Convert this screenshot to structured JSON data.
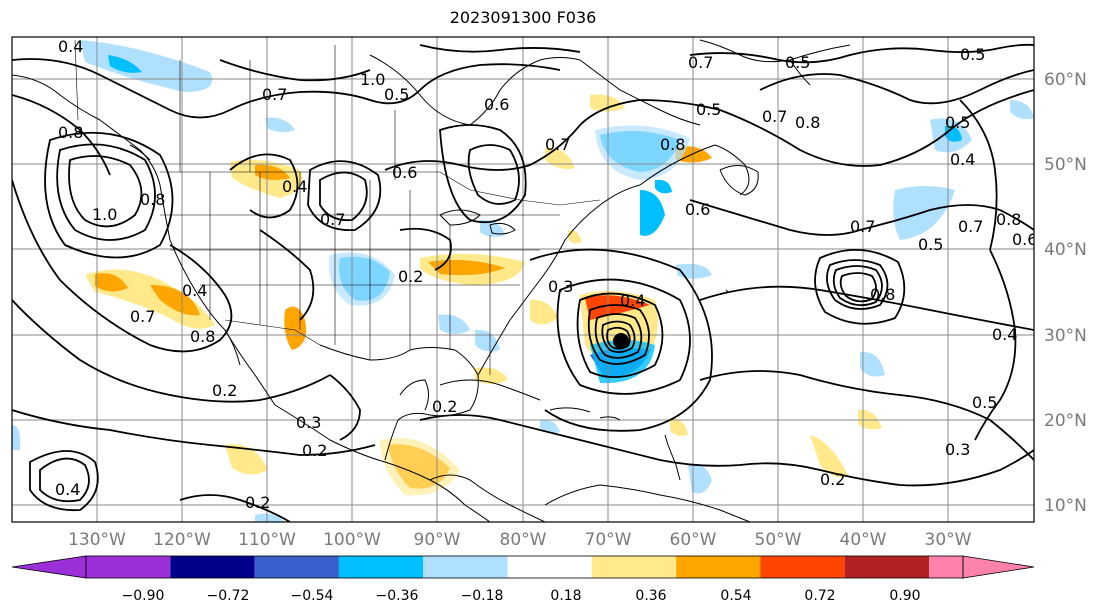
{
  "title": "2023091300 F036",
  "colors": {
    "neg_090": "#9b30d9",
    "neg_072": "#00008b",
    "neg_054": "#3a5fcd",
    "neg_036": "#00bfff",
    "neg_018": "#b0e0ff",
    "zero": "#ffffff",
    "pos_018": "#ffe98a",
    "pos_036": "#ffa500",
    "pos_054": "#ff4500",
    "pos_072": "#b22222",
    "pos_090": "#ff82ab",
    "contour": "#000000",
    "grid": "#8a8a8a",
    "land": "#000000"
  },
  "latitude_ticks": [
    "10°N",
    "20°N",
    "30°N",
    "40°N",
    "50°N",
    "60°N"
  ],
  "longitude_ticks": [
    "130°W",
    "120°W",
    "110°W",
    "100°W",
    "90°W",
    "80°W",
    "70°W",
    "60°W",
    "50°W",
    "40°W",
    "30°W"
  ],
  "colorbar": {
    "ticks": [
      "−0.90",
      "−0.72",
      "−0.54",
      "−0.36",
      "−0.18",
      "0.18",
      "0.36",
      "0.54",
      "0.72",
      "0.90"
    ]
  },
  "contour_labels": [
    "0.4",
    "0.5",
    "0.7",
    "0.6",
    "1.0",
    "0.8",
    "0.2",
    "0.3"
  ],
  "map_view": {
    "lon_range": [
      -139,
      -19
    ],
    "lat_range": [
      8,
      65
    ]
  }
}
